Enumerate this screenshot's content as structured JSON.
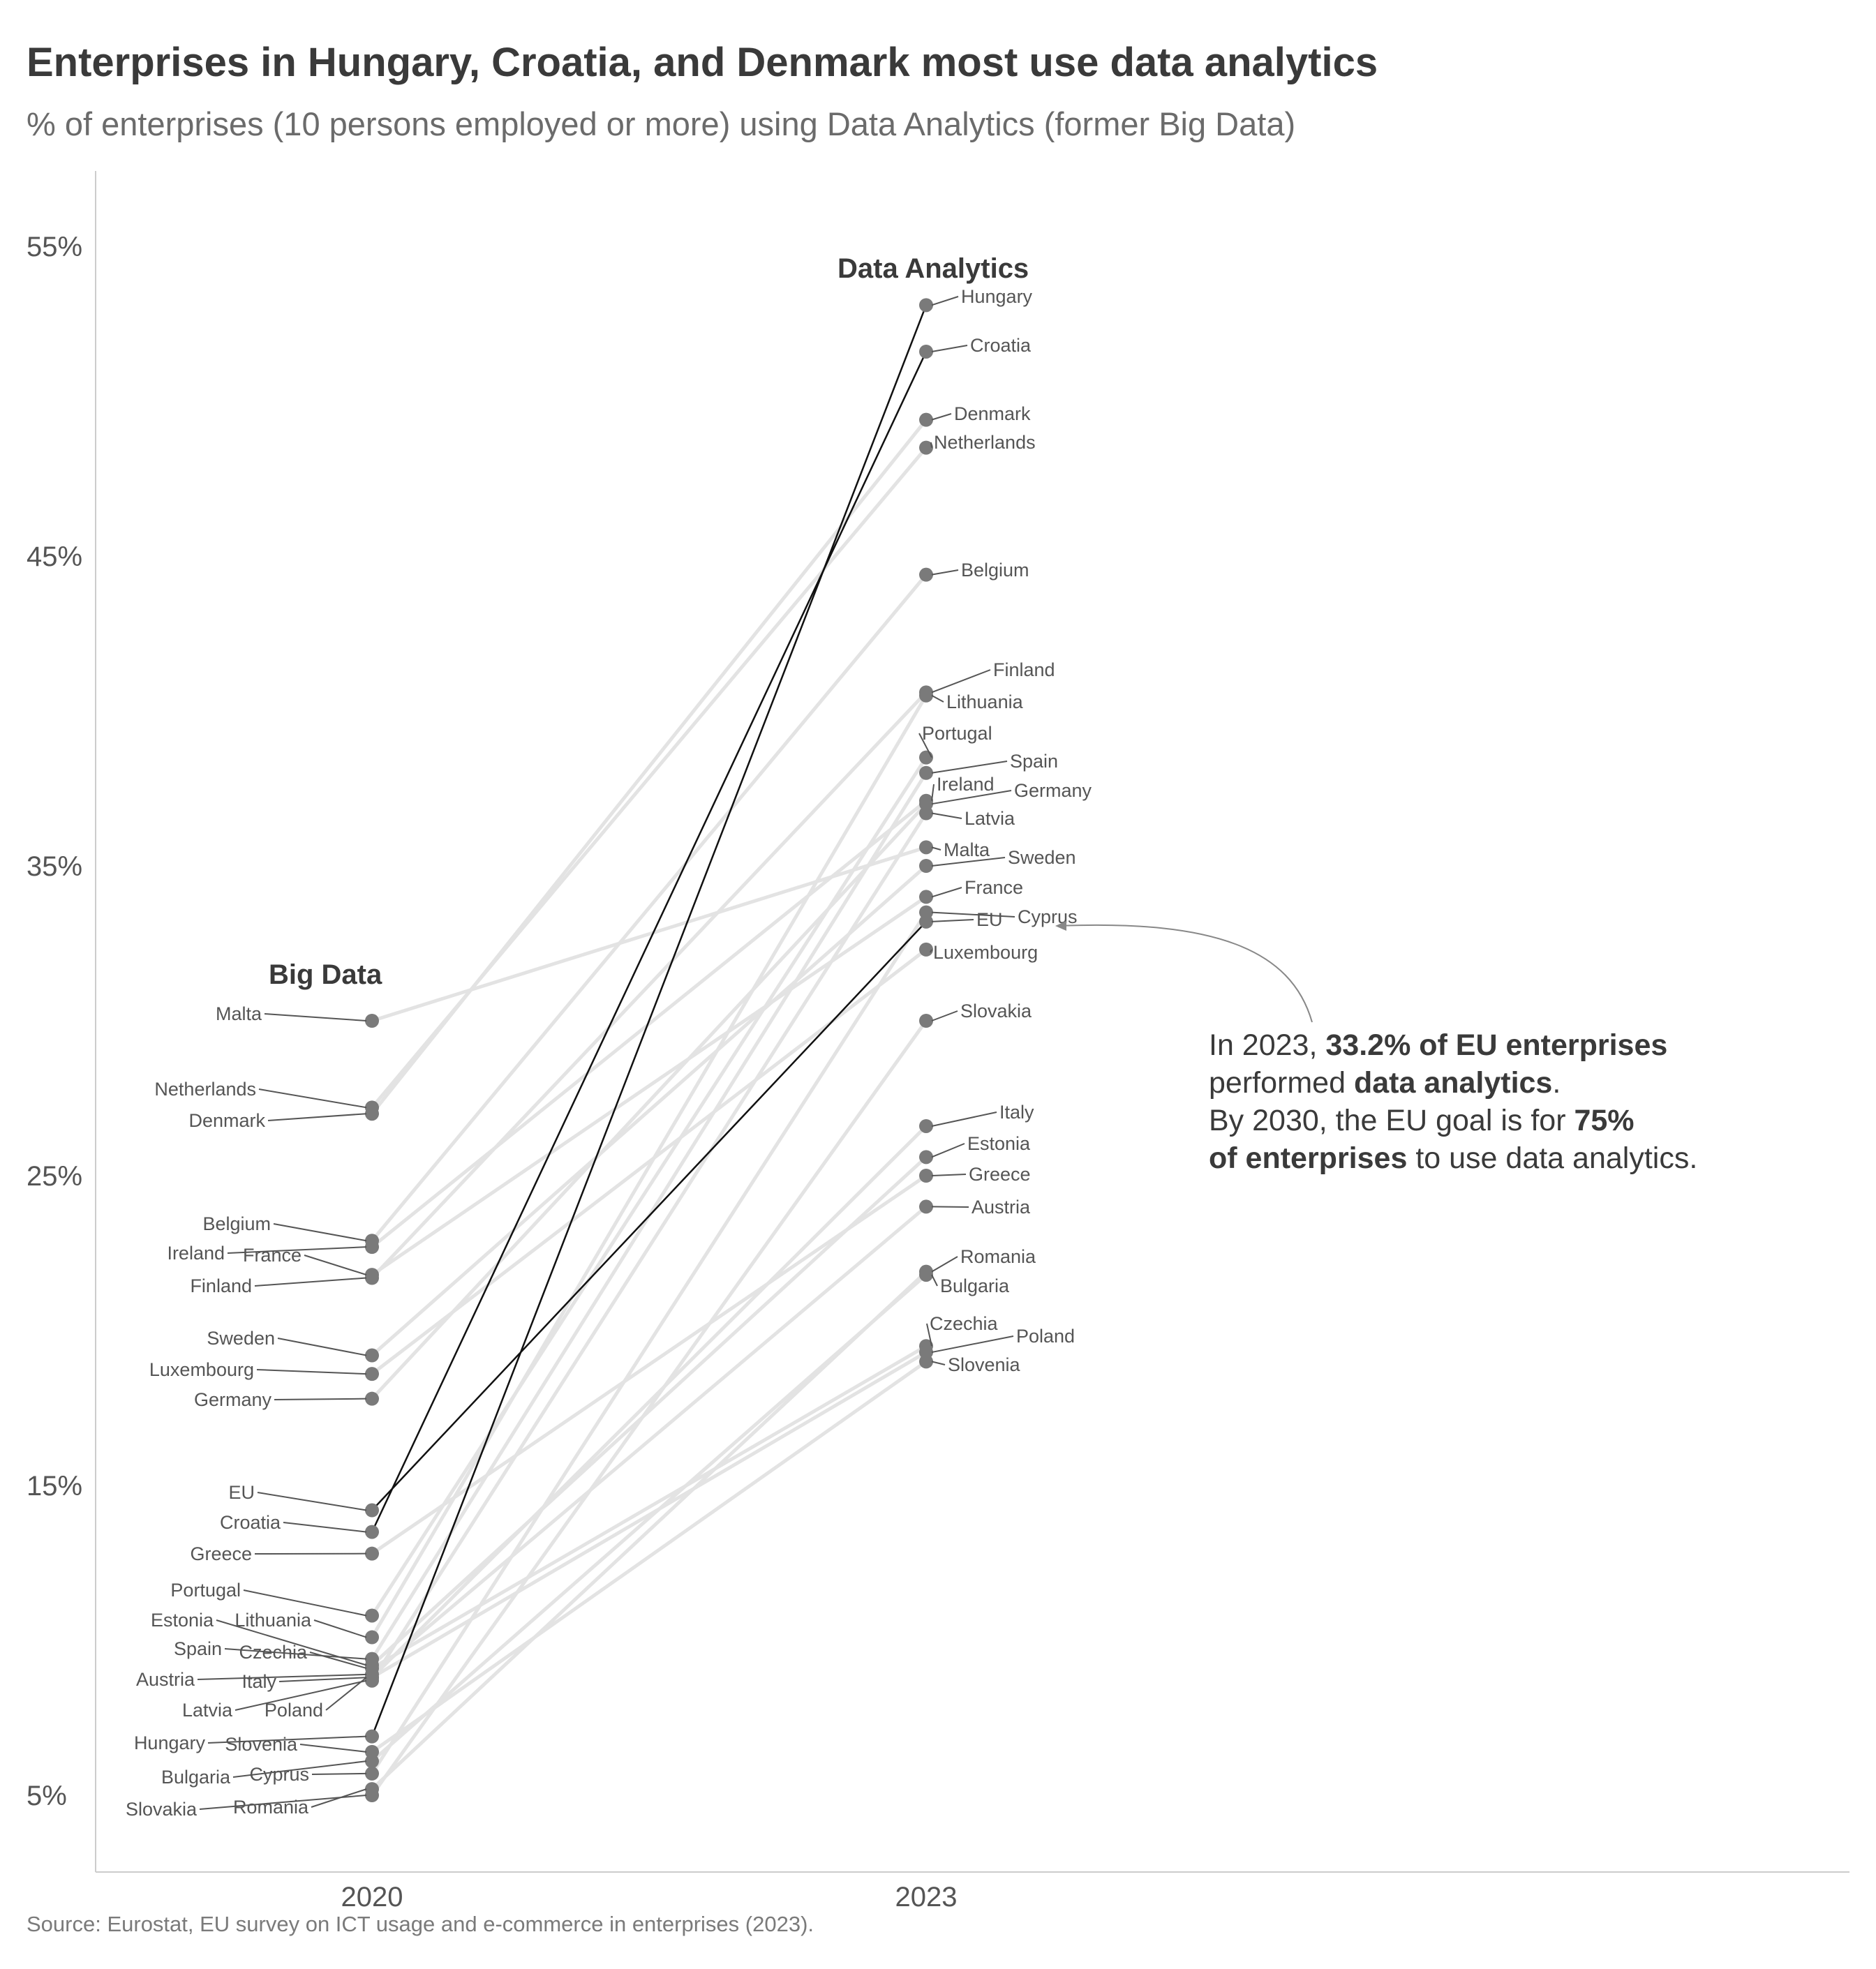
{
  "title": "Enterprises in Hungary, Croatia, and Denmark most use data analytics",
  "subtitle": "% of enterprises (10 persons employed or more) using Data Analytics (former Big Data)",
  "source": "Source: Eurostat, EU survey on ICT usage and e-commerce in enterprises (2023).",
  "chart_data": {
    "type": "line",
    "x": [
      "2020",
      "2023"
    ],
    "ylim": [
      2,
      57
    ],
    "yticks": [
      5,
      15,
      25,
      35,
      45,
      55
    ],
    "ytick_labels": [
      "5%",
      "15%",
      "25%",
      "35%",
      "45%",
      "55%"
    ],
    "group_labels": {
      "left": "Big Data",
      "right": "Data Analytics"
    },
    "highlighted": [
      "Hungary",
      "Croatia",
      "EU"
    ],
    "colors": {
      "highlight": "#111111",
      "muted": "#e3e3e3",
      "point": "#7a7a7a",
      "text": "#555555"
    },
    "series": [
      {
        "name": "Hungary",
        "values": [
          6.9,
          53.1
        ]
      },
      {
        "name": "Croatia",
        "values": [
          13.5,
          51.6
        ]
      },
      {
        "name": "Denmark",
        "values": [
          27.0,
          49.4
        ]
      },
      {
        "name": "Netherlands",
        "values": [
          27.2,
          48.5
        ]
      },
      {
        "name": "Belgium",
        "values": [
          22.9,
          44.4
        ]
      },
      {
        "name": "Finland",
        "values": [
          21.7,
          40.6
        ]
      },
      {
        "name": "Lithuania",
        "values": [
          10.1,
          40.5
        ]
      },
      {
        "name": "Portugal",
        "values": [
          10.8,
          38.5
        ]
      },
      {
        "name": "Spain",
        "values": [
          9.4,
          38.0
        ]
      },
      {
        "name": "Ireland",
        "values": [
          22.7,
          37.1
        ]
      },
      {
        "name": "Germany",
        "values": [
          17.8,
          37.0
        ]
      },
      {
        "name": "Latvia",
        "values": [
          8.7,
          36.7
        ]
      },
      {
        "name": "Malta",
        "values": [
          30.0,
          35.6
        ]
      },
      {
        "name": "Sweden",
        "values": [
          19.2,
          35.0
        ]
      },
      {
        "name": "France",
        "values": [
          21.8,
          34.0
        ]
      },
      {
        "name": "Cyprus",
        "values": [
          5.7,
          33.5
        ]
      },
      {
        "name": "EU",
        "values": [
          14.2,
          33.2
        ]
      },
      {
        "name": "Luxembourg",
        "values": [
          18.6,
          32.3
        ]
      },
      {
        "name": "Slovakia",
        "values": [
          5.0,
          30.0
        ]
      },
      {
        "name": "Italy",
        "values": [
          8.8,
          26.6
        ]
      },
      {
        "name": "Estonia",
        "values": [
          9.2,
          25.6
        ]
      },
      {
        "name": "Greece",
        "values": [
          12.8,
          25.0
        ]
      },
      {
        "name": "Austria",
        "values": [
          8.9,
          24.0
        ]
      },
      {
        "name": "Romania",
        "values": [
          5.2,
          21.9
        ]
      },
      {
        "name": "Bulgaria",
        "values": [
          6.1,
          21.8
        ]
      },
      {
        "name": "Czechia",
        "values": [
          9.1,
          19.5
        ]
      },
      {
        "name": "Poland",
        "values": [
          8.8,
          19.3
        ]
      },
      {
        "name": "Slovenia",
        "values": [
          6.4,
          19.0
        ]
      }
    ],
    "annotation": {
      "lines": [
        [
          {
            "t": "In 2023, ",
            "b": false
          },
          {
            "t": "33.2% of EU enterprises",
            "b": true
          }
        ],
        [
          {
            "t": "performed ",
            "b": false
          },
          {
            "t": "data analytics",
            "b": true
          },
          {
            "t": ".",
            "b": false
          }
        ],
        [
          {
            "t": "By 2030, the EU goal is for ",
            "b": false
          },
          {
            "t": "75%",
            "b": true
          }
        ],
        [
          {
            "t": "of enterprises",
            "b": true
          },
          {
            "t": " to use data analytics.",
            "b": false
          }
        ]
      ]
    }
  }
}
